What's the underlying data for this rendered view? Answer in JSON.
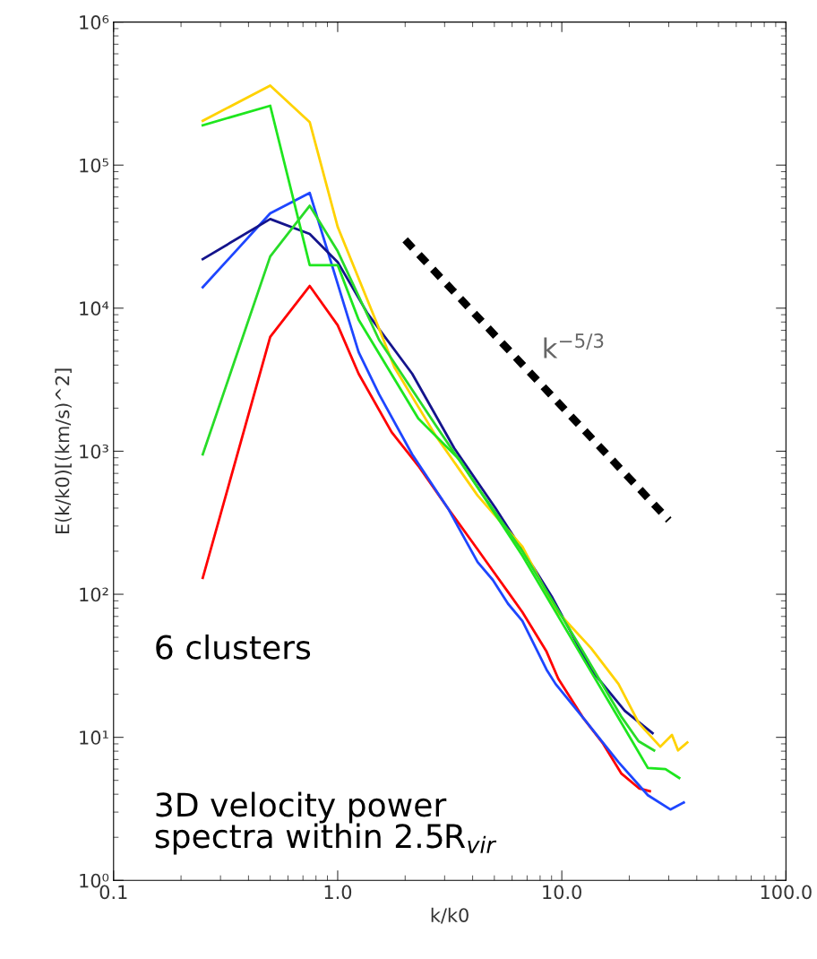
{
  "chart_data": {
    "type": "line",
    "xlabel": "k/k0",
    "ylabel": "E(k/k0)[(km/s)^2]",
    "log": "xy",
    "grid": false,
    "legend": false,
    "marker": "none",
    "xlim": [
      0.1,
      100
    ],
    "xticks": [
      {
        "value": 0.1,
        "label": "0.1"
      },
      {
        "value": 1,
        "label": "1.0"
      },
      {
        "value": 10,
        "label": "10.0"
      },
      {
        "value": 100,
        "label": "100.0"
      }
    ],
    "ylim": [
      1,
      1000000
    ],
    "yticks": [
      {
        "value": 1,
        "label": "10⁰"
      },
      {
        "value": 10,
        "label": "10¹"
      },
      {
        "value": 100,
        "label": "10²"
      },
      {
        "value": 1000,
        "label": "10³"
      },
      {
        "value": 10000,
        "label": "10⁴"
      },
      {
        "value": 100000,
        "label": "10⁵"
      },
      {
        "value": 1000000,
        "label": "10⁶"
      }
    ],
    "annotations": [
      "6 clusters",
      "3D velocity power\nspectra within 2.5R$_{vir}$"
    ],
    "series": [
      {
        "color": "#ff0000",
        "line_style": "solid",
        "x": [
          0.25,
          0.5,
          0.75,
          1.0,
          1.24,
          1.74,
          2.29,
          3.1,
          4.21,
          4.92,
          5.75,
          6.67,
          8.55,
          9.64,
          12.4,
          15.3,
          18.4,
          22.1,
          24.7
        ],
        "values": [
          130,
          6300,
          14300,
          7600,
          3480,
          1360,
          790,
          400,
          206,
          146,
          104,
          75,
          39.7,
          25.7,
          13.8,
          9.0,
          5.6,
          4.4,
          4.2
        ]
      },
      {
        "color": "#1e46ff",
        "line_style": "solid",
        "x": [
          0.25,
          0.5,
          0.75,
          0.953,
          1.24,
          1.53,
          2.15,
          3.1,
          4.21,
          4.92,
          5.75,
          6.67,
          8.55,
          9.38,
          12.4,
          17.9,
          24.2,
          30.5,
          35
        ],
        "values": [
          14000,
          46000,
          64000,
          18900,
          4930,
          2500,
          950,
          400,
          168,
          126,
          86,
          65,
          29.7,
          23.6,
          13.8,
          6.7,
          3.94,
          3.13,
          3.5
        ]
      },
      {
        "color": "#14148c",
        "line_style": "solid",
        "x": [
          0.25,
          0.5,
          0.75,
          1.0,
          1.36,
          2.15,
          3.31,
          5.06,
          7.8,
          9.1,
          13.5,
          19.1,
          25.4
        ],
        "values": [
          22000,
          42000,
          33000,
          21000,
          9170,
          3480,
          1050,
          400,
          139,
          94,
          29.7,
          15.3,
          10.7
        ]
      },
      {
        "color": "#ffd200",
        "line_style": "solid",
        "x": [
          0.25,
          0.5,
          0.75,
          1.0,
          1.53,
          1.79,
          2.75,
          4.21,
          6.67,
          9.38,
          13.5,
          17.9,
          22.1,
          27.5,
          31.0,
          33.0,
          36.3
        ],
        "values": [
          204000,
          360000,
          200000,
          37000,
          7180,
          3860,
          1270,
          490,
          215,
          78,
          42,
          23.6,
          12.5,
          8.6,
          10.4,
          8.1,
          9.2
        ]
      },
      {
        "color": "#1ee61e",
        "line_style": "solid",
        "x": [
          0.25,
          0.5,
          0.75,
          1.0,
          1.24,
          2.29,
          3.5,
          6.67,
          12.4,
          19.1,
          24.2,
          29.0,
          33.4
        ],
        "values": [
          190000,
          260000,
          20000,
          20000,
          8290,
          1690,
          871,
          186,
          36,
          11.5,
          6.1,
          6.0,
          5.2
        ]
      },
      {
        "color": "#28dc28",
        "line_style": "solid",
        "x": [
          0.25,
          0.5,
          0.75,
          1.0,
          1.53,
          2.75,
          4.21,
          6.67,
          12.4,
          18.4,
          22.0,
          25.8
        ],
        "values": [
          950,
          23000,
          52000,
          25000,
          6000,
          1500,
          560,
          200,
          40,
          14,
          9.4,
          8.1
        ]
      },
      {
        "name": "k$^{−5/3}$",
        "color": "#000000",
        "line_style": "dashed",
        "x": [
          2,
          30
        ],
        "values": [
          30000,
          330
        ]
      }
    ]
  }
}
